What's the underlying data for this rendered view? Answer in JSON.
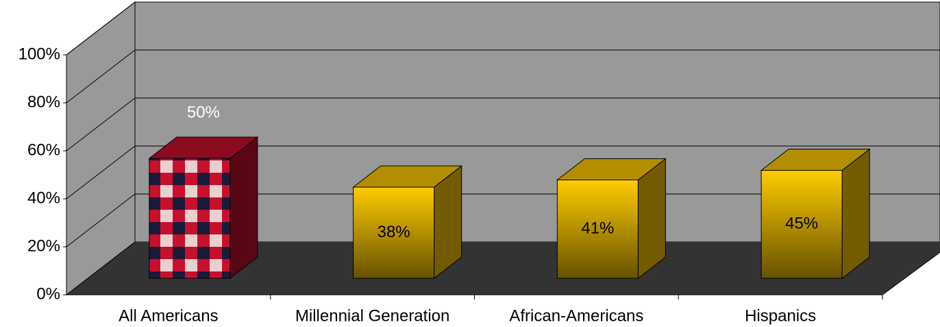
{
  "chart_data": {
    "type": "bar3d",
    "categories": [
      "All Americans",
      "Millennial Generation",
      "African-Americans",
      "Hispanics"
    ],
    "values": [
      50,
      38,
      41,
      45
    ],
    "value_labels": [
      "50%",
      "38%",
      "41%",
      "45%"
    ],
    "colors": [
      "#c8102e",
      "#ffcc00",
      "#ffcc00",
      "#ffcc00"
    ],
    "ylim": [
      0,
      100
    ],
    "yticks": [
      {
        "value": 0,
        "label": "0%"
      },
      {
        "value": 20,
        "label": "20%"
      },
      {
        "value": 40,
        "label": "40%"
      },
      {
        "value": 60,
        "label": "60%"
      },
      {
        "value": 80,
        "label": "80%"
      },
      {
        "value": 100,
        "label": "100%"
      }
    ],
    "grid": true
  }
}
